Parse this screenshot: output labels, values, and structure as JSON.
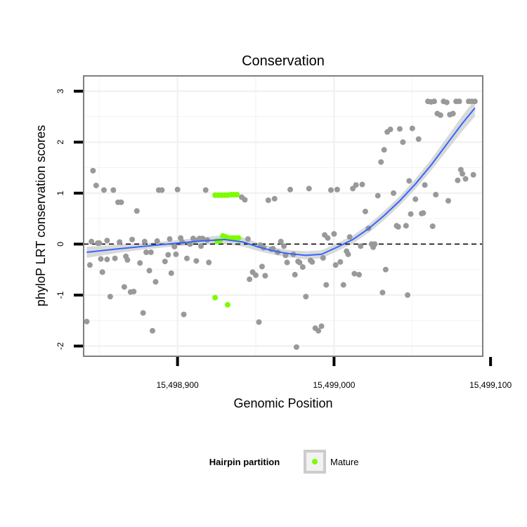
{
  "chart_data": {
    "type": "scatter",
    "title": "Conservation",
    "xlabel": "Genomic Position",
    "ylabel": "phyloP LRT conservation scores",
    "xlim": [
      15498840,
      15499095
    ],
    "ylim": [
      -2.2,
      3.3
    ],
    "x_ticks": [
      15498900,
      15499000,
      15499100
    ],
    "x_tick_labels": [
      "15,498,900",
      "15,499,000",
      "15,499,100"
    ],
    "y_ticks": [
      -2,
      -1,
      0,
      1,
      2,
      3
    ],
    "y_tick_labels": [
      "-2",
      "-1",
      "0",
      "1",
      "2",
      "3"
    ],
    "hline": 0,
    "grid": true,
    "legend": {
      "title": "Hairpin partition",
      "entries": [
        "Mature"
      ],
      "placement": "bottom"
    },
    "colors": {
      "other": "#999999",
      "mature": "#7cfc00",
      "smooth": "#3366ff",
      "band": "#cccccc",
      "grid": "#f2f2f2",
      "border": "#7f7f7f"
    },
    "series": [
      {
        "name": "Mature",
        "color": "#7cfc00",
        "x": [
          15498924,
          15498926,
          15498928,
          15498930,
          15498932,
          15498934,
          15498936,
          15498938,
          15498929,
          15498931,
          15498933,
          15498935,
          15498937,
          15498939,
          15498925,
          15498927,
          15498932,
          15498924
        ],
        "y": [
          0.96,
          0.96,
          0.96,
          0.96,
          0.96,
          0.97,
          0.97,
          0.97,
          0.16,
          0.14,
          0.12,
          0.12,
          0.12,
          0.12,
          0.06,
          0.06,
          -1.19,
          -1.05
        ]
      },
      {
        "name": "",
        "color": "#999999",
        "x": [
          15498842,
          15498844,
          15498846,
          15498848,
          15498850,
          15498852,
          15498853,
          15498855,
          15498857,
          15498859,
          15498860,
          15498862,
          15498864,
          15498866,
          15498868,
          15498870,
          15498872,
          15498874,
          15498876,
          15498878,
          15498880,
          15498882,
          15498884,
          15498886,
          15498888,
          15498890,
          15498892,
          15498894,
          15498896,
          15498898,
          15498900,
          15498902,
          15498904,
          15498906,
          15498908,
          15498910,
          15498912,
          15498914,
          15498916,
          15498918,
          15498920,
          15498941,
          15498943,
          15498946,
          15498948,
          15498950,
          15498952,
          15498954,
          15498956,
          15498958,
          15498960,
          15498962,
          15498964,
          15498966,
          15498968,
          15498970,
          15498972,
          15498974,
          15498976,
          15498978,
          15498980,
          15498982,
          15498984,
          15498986,
          15498988,
          15498990,
          15498992,
          15498994,
          15498996,
          15498998,
          15499000,
          15499002,
          15499004,
          15499006,
          15499008,
          15499010,
          15499012,
          15499014,
          15499016,
          15499018,
          15499020,
          15499022,
          15499024,
          15499026,
          15499028,
          15499030,
          15499032,
          15499034,
          15499036,
          15499038,
          15499040,
          15499042,
          15499044,
          15499046,
          15499048,
          15499050,
          15499052,
          15499054,
          15499056,
          15499058,
          15499060,
          15499062,
          15499064,
          15499066,
          15499068,
          15499070,
          15499072,
          15499074,
          15499076,
          15499078,
          15499080,
          15499082,
          15499084,
          15499086,
          15499088,
          15499090,
          15498845,
          15498849,
          15498855,
          15498863,
          15498871,
          15498879,
          15498887,
          15498895,
          15498903,
          15498911,
          15498919,
          15498945,
          15498953,
          15498961,
          15498969,
          15498977,
          15498985,
          15498993,
          15499001,
          15499009,
          15499017,
          15499025,
          15499033,
          15499041,
          15499049,
          15499057,
          15499065,
          15499073,
          15499081,
          15499089,
          15498851,
          15498867,
          15498883,
          15498899,
          15498915,
          15498955,
          15498975,
          15498995,
          15499013,
          15499031,
          15499047,
          15499063,
          15499079
        ],
        "y": [
          -1.52,
          -0.41,
          1.44,
          1.15,
          0.02,
          -0.55,
          1.06,
          -0.3,
          -1.03,
          1.06,
          -0.28,
          0.82,
          0.82,
          -0.84,
          -0.31,
          -0.94,
          -0.93,
          0.65,
          -0.37,
          -1.35,
          -0.16,
          -0.52,
          -1.7,
          -0.74,
          1.06,
          1.06,
          -0.34,
          -0.21,
          -0.57,
          -0.05,
          1.07,
          0.12,
          -1.38,
          -0.28,
          0.0,
          0.11,
          -0.33,
          0.11,
          0.11,
          1.06,
          -0.36,
          0.92,
          0.87,
          -0.69,
          -0.55,
          -0.61,
          -1.53,
          -0.44,
          -0.62,
          0.86,
          -0.1,
          0.89,
          -0.16,
          0.05,
          -0.04,
          -0.36,
          1.07,
          -0.2,
          -2.02,
          -0.36,
          -0.45,
          -1.03,
          1.09,
          -0.35,
          -1.65,
          -1.7,
          -1.61,
          0.18,
          0.12,
          1.06,
          0.2,
          1.07,
          -0.35,
          -0.8,
          -0.14,
          0.14,
          1.09,
          1.16,
          -0.6,
          1.17,
          0.64,
          0.31,
          0.0,
          0.0,
          0.95,
          1.61,
          1.85,
          2.2,
          2.25,
          1.0,
          0.36,
          2.26,
          2.0,
          0.36,
          1.24,
          2.27,
          0.88,
          2.06,
          0.6,
          1.16,
          2.8,
          2.79,
          2.8,
          2.56,
          2.53,
          2.8,
          2.78,
          2.54,
          2.56,
          2.8,
          2.8,
          1.38,
          1.28,
          2.8,
          2.8,
          2.8,
          0.05,
          0.02,
          0.07,
          0.04,
          0.09,
          0.05,
          0.06,
          0.1,
          0.04,
          0.08,
          0.08,
          0.1,
          -0.02,
          -0.09,
          -0.22,
          -0.34,
          -0.32,
          -0.27,
          -0.41,
          -0.2,
          -0.04,
          -0.06,
          -0.5,
          0.34,
          0.59,
          0.61,
          0.97,
          0.85,
          1.46,
          1.36,
          -0.29,
          -0.24,
          -0.16,
          -0.2,
          -0.04,
          -0.07,
          -0.6,
          -0.8,
          -0.58,
          -0.95,
          -1.0,
          0.35,
          1.25
        ]
      }
    ],
    "smooth": {
      "x": [
        15498842,
        15498860,
        15498880,
        15498900,
        15498915,
        15498930,
        15498942,
        15498952,
        15498962,
        15498972,
        15498982,
        15498992,
        15499002,
        15499012,
        15499022,
        15499032,
        15499042,
        15499052,
        15499062,
        15499072,
        15499082,
        15499090
      ],
      "y": [
        -0.16,
        -0.1,
        -0.04,
        0.02,
        0.06,
        0.09,
        0.04,
        -0.06,
        -0.14,
        -0.19,
        -0.22,
        -0.2,
        -0.06,
        0.09,
        0.3,
        0.56,
        0.85,
        1.18,
        1.55,
        1.96,
        2.37,
        2.67
      ],
      "se": [
        0.11,
        0.08,
        0.06,
        0.06,
        0.07,
        0.09,
        0.09,
        0.08,
        0.07,
        0.07,
        0.08,
        0.08,
        0.08,
        0.08,
        0.08,
        0.09,
        0.09,
        0.1,
        0.11,
        0.13,
        0.15,
        0.17
      ]
    }
  }
}
